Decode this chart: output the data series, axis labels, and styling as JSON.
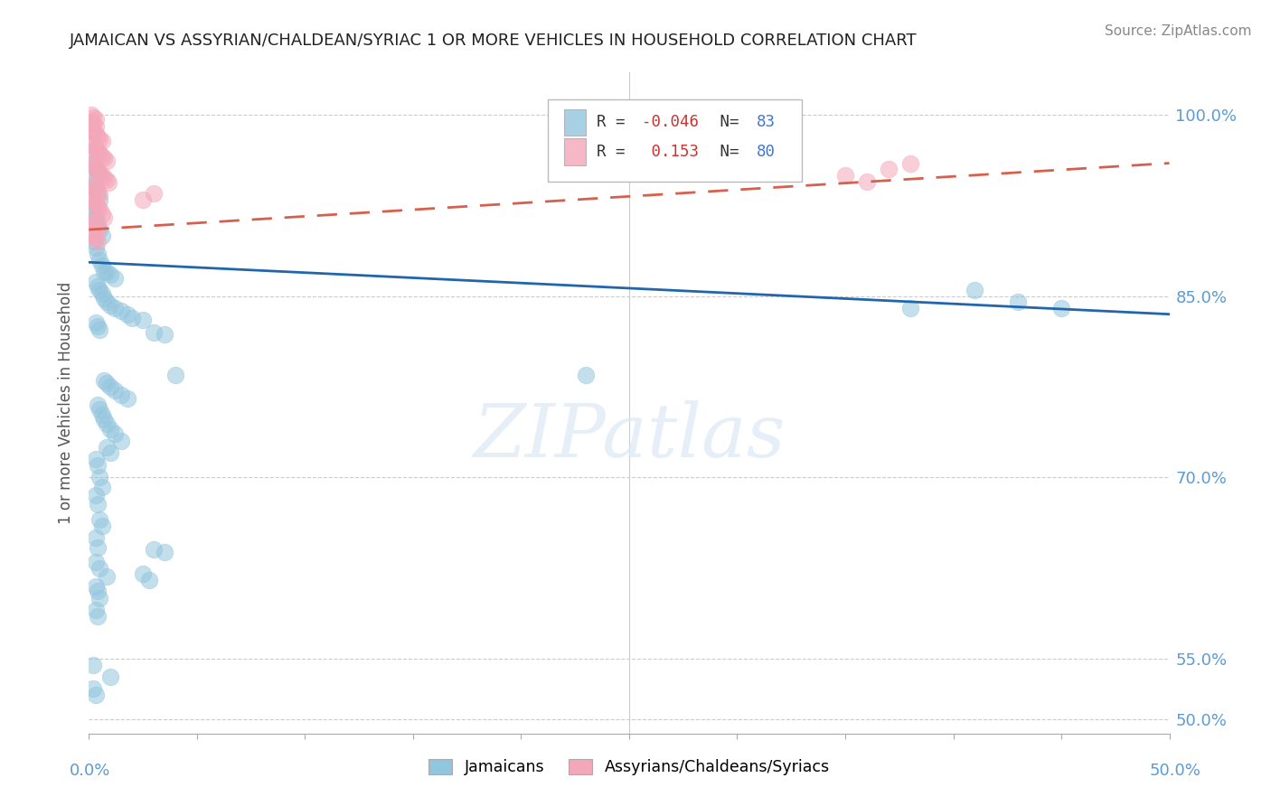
{
  "title": "JAMAICAN VS ASSYRIAN/CHALDEAN/SYRIAC 1 OR MORE VEHICLES IN HOUSEHOLD CORRELATION CHART",
  "source": "Source: ZipAtlas.com",
  "ylabel": "1 or more Vehicles in Household",
  "ytick_values": [
    0.5,
    0.55,
    0.7,
    0.85,
    1.0
  ],
  "xlim": [
    0.0,
    0.5
  ],
  "ylim": [
    0.488,
    1.035
  ],
  "watermark_text": "ZIPatlas",
  "blue_color": "#92c5de",
  "pink_color": "#f4a7b9",
  "blue_line_color": "#2166ac",
  "pink_line_color": "#d6604d",
  "axis_label_color": "#5b9bd5",
  "title_color": "#222222",
  "source_color": "#888888",
  "blue_line_x": [
    0.0,
    0.5
  ],
  "blue_line_y": [
    0.878,
    0.835
  ],
  "pink_line_x": [
    0.0,
    0.5
  ],
  "pink_line_y": [
    0.905,
    0.96
  ],
  "blue_scatter": [
    [
      0.001,
      0.97
    ],
    [
      0.002,
      0.96
    ],
    [
      0.003,
      0.955
    ],
    [
      0.004,
      0.95
    ],
    [
      0.002,
      0.945
    ],
    [
      0.003,
      0.94
    ],
    [
      0.004,
      0.935
    ],
    [
      0.005,
      0.93
    ],
    [
      0.001,
      0.925
    ],
    [
      0.002,
      0.92
    ],
    [
      0.003,
      0.915
    ],
    [
      0.004,
      0.91
    ],
    [
      0.005,
      0.905
    ],
    [
      0.006,
      0.9
    ],
    [
      0.002,
      0.895
    ],
    [
      0.003,
      0.89
    ],
    [
      0.004,
      0.885
    ],
    [
      0.005,
      0.88
    ],
    [
      0.006,
      0.875
    ],
    [
      0.007,
      0.87
    ],
    [
      0.008,
      0.87
    ],
    [
      0.01,
      0.868
    ],
    [
      0.012,
      0.865
    ],
    [
      0.003,
      0.862
    ],
    [
      0.004,
      0.858
    ],
    [
      0.005,
      0.855
    ],
    [
      0.006,
      0.852
    ],
    [
      0.007,
      0.848
    ],
    [
      0.008,
      0.845
    ],
    [
      0.01,
      0.842
    ],
    [
      0.012,
      0.84
    ],
    [
      0.015,
      0.838
    ],
    [
      0.018,
      0.835
    ],
    [
      0.02,
      0.832
    ],
    [
      0.025,
      0.83
    ],
    [
      0.003,
      0.828
    ],
    [
      0.004,
      0.825
    ],
    [
      0.005,
      0.822
    ],
    [
      0.03,
      0.82
    ],
    [
      0.035,
      0.818
    ],
    [
      0.04,
      0.785
    ],
    [
      0.007,
      0.78
    ],
    [
      0.008,
      0.778
    ],
    [
      0.01,
      0.775
    ],
    [
      0.012,
      0.772
    ],
    [
      0.015,
      0.768
    ],
    [
      0.018,
      0.765
    ],
    [
      0.004,
      0.76
    ],
    [
      0.005,
      0.756
    ],
    [
      0.006,
      0.752
    ],
    [
      0.007,
      0.748
    ],
    [
      0.008,
      0.744
    ],
    [
      0.01,
      0.74
    ],
    [
      0.012,
      0.736
    ],
    [
      0.015,
      0.73
    ],
    [
      0.008,
      0.725
    ],
    [
      0.01,
      0.72
    ],
    [
      0.003,
      0.715
    ],
    [
      0.004,
      0.71
    ],
    [
      0.005,
      0.7
    ],
    [
      0.006,
      0.692
    ],
    [
      0.003,
      0.685
    ],
    [
      0.004,
      0.678
    ],
    [
      0.005,
      0.665
    ],
    [
      0.006,
      0.66
    ],
    [
      0.003,
      0.65
    ],
    [
      0.004,
      0.642
    ],
    [
      0.03,
      0.64
    ],
    [
      0.035,
      0.638
    ],
    [
      0.003,
      0.63
    ],
    [
      0.005,
      0.625
    ],
    [
      0.008,
      0.618
    ],
    [
      0.003,
      0.61
    ],
    [
      0.004,
      0.606
    ],
    [
      0.005,
      0.6
    ],
    [
      0.003,
      0.59
    ],
    [
      0.004,
      0.585
    ],
    [
      0.025,
      0.62
    ],
    [
      0.028,
      0.615
    ],
    [
      0.002,
      0.545
    ],
    [
      0.01,
      0.535
    ],
    [
      0.002,
      0.525
    ],
    [
      0.003,
      0.52
    ],
    [
      0.23,
      0.785
    ],
    [
      0.38,
      0.84
    ],
    [
      0.41,
      0.855
    ],
    [
      0.43,
      0.845
    ],
    [
      0.45,
      0.84
    ]
  ],
  "pink_scatter": [
    [
      0.001,
      1.0
    ],
    [
      0.002,
      0.998
    ],
    [
      0.003,
      0.996
    ],
    [
      0.001,
      0.994
    ],
    [
      0.002,
      0.992
    ],
    [
      0.003,
      0.99
    ],
    [
      0.001,
      0.988
    ],
    [
      0.002,
      0.986
    ],
    [
      0.003,
      0.984
    ],
    [
      0.004,
      0.982
    ],
    [
      0.005,
      0.98
    ],
    [
      0.006,
      0.978
    ],
    [
      0.001,
      0.976
    ],
    [
      0.002,
      0.974
    ],
    [
      0.003,
      0.972
    ],
    [
      0.004,
      0.97
    ],
    [
      0.005,
      0.968
    ],
    [
      0.006,
      0.966
    ],
    [
      0.007,
      0.964
    ],
    [
      0.008,
      0.962
    ],
    [
      0.001,
      0.96
    ],
    [
      0.002,
      0.958
    ],
    [
      0.003,
      0.956
    ],
    [
      0.004,
      0.954
    ],
    [
      0.005,
      0.952
    ],
    [
      0.006,
      0.95
    ],
    [
      0.007,
      0.948
    ],
    [
      0.008,
      0.946
    ],
    [
      0.009,
      0.944
    ],
    [
      0.001,
      0.942
    ],
    [
      0.002,
      0.94
    ],
    [
      0.003,
      0.938
    ],
    [
      0.004,
      0.936
    ],
    [
      0.005,
      0.934
    ],
    [
      0.001,
      0.93
    ],
    [
      0.002,
      0.928
    ],
    [
      0.003,
      0.926
    ],
    [
      0.004,
      0.924
    ],
    [
      0.005,
      0.922
    ],
    [
      0.006,
      0.918
    ],
    [
      0.007,
      0.915
    ],
    [
      0.001,
      0.912
    ],
    [
      0.002,
      0.91
    ],
    [
      0.003,
      0.908
    ],
    [
      0.004,
      0.906
    ],
    [
      0.001,
      0.902
    ],
    [
      0.002,
      0.9
    ],
    [
      0.003,
      0.898
    ],
    [
      0.004,
      0.895
    ],
    [
      0.03,
      0.935
    ],
    [
      0.025,
      0.93
    ],
    [
      0.35,
      0.95
    ],
    [
      0.38,
      0.96
    ],
    [
      0.36,
      0.945
    ],
    [
      0.37,
      0.955
    ]
  ]
}
